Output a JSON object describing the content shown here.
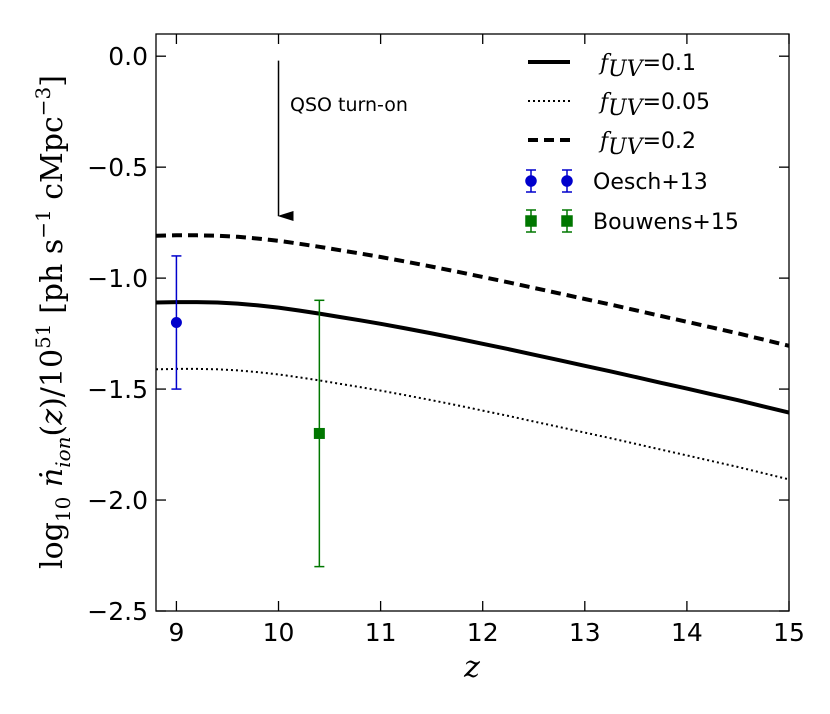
{
  "chart_data": {
    "type": "line",
    "x_range": [
      8.8,
      15
    ],
    "y_range": [
      -2.5,
      0.1
    ],
    "xlabel": "z",
    "ylabel": "log10 ṅ_ion(z)/10^51 [ph s^-1 cMpc^-3]",
    "x_ticks": [
      9,
      10,
      11,
      12,
      13,
      14,
      15
    ],
    "y_ticks": [
      0.0,
      -0.5,
      -1.0,
      -1.5,
      -2.0,
      -2.5
    ],
    "x_tick_labels": [
      "9",
      "10",
      "11",
      "12",
      "13",
      "14",
      "15"
    ],
    "y_tick_labels": [
      "0.0",
      "−0.5",
      "−1.0",
      "−1.5",
      "−2.0",
      "−2.5"
    ],
    "series": [
      {
        "name": "f_UV=0.1",
        "legend_label": "f_UV = 0.1",
        "legend_main": "f",
        "legend_sub": "UV",
        "legend_value": "=0.1",
        "style": "solid",
        "color": "#000000",
        "x": [
          8.8,
          9.0,
          9.2,
          9.4,
          9.6,
          9.8,
          10.0,
          10.2,
          10.4,
          10.6,
          10.8,
          11.0,
          11.25,
          11.5,
          11.75,
          12.0,
          12.25,
          12.5,
          12.75,
          13.0,
          13.25,
          13.5,
          13.75,
          14.0,
          14.25,
          14.5,
          14.75,
          15.0
        ],
        "y": [
          -1.11,
          -1.108,
          -1.108,
          -1.11,
          -1.115,
          -1.123,
          -1.133,
          -1.146,
          -1.16,
          -1.175,
          -1.19,
          -1.206,
          -1.227,
          -1.249,
          -1.272,
          -1.296,
          -1.32,
          -1.345,
          -1.37,
          -1.395,
          -1.42,
          -1.446,
          -1.472,
          -1.498,
          -1.524,
          -1.55,
          -1.578,
          -1.606
        ]
      },
      {
        "name": "f_UV=0.05",
        "legend_label": "f_UV = 0.05",
        "legend_main": "f",
        "legend_sub": "UV",
        "legend_value": "=0.05",
        "style": "dotted",
        "color": "#000000",
        "x": [
          8.8,
          9.0,
          9.2,
          9.4,
          9.6,
          9.8,
          10.0,
          10.2,
          10.4,
          10.6,
          10.8,
          11.0,
          11.25,
          11.5,
          11.75,
          12.0,
          12.25,
          12.5,
          12.75,
          13.0,
          13.25,
          13.5,
          13.75,
          14.0,
          14.25,
          14.5,
          14.75,
          15.0
        ],
        "y": [
          -1.411,
          -1.409,
          -1.409,
          -1.411,
          -1.416,
          -1.424,
          -1.434,
          -1.447,
          -1.461,
          -1.476,
          -1.491,
          -1.507,
          -1.528,
          -1.55,
          -1.573,
          -1.597,
          -1.621,
          -1.646,
          -1.671,
          -1.696,
          -1.721,
          -1.747,
          -1.773,
          -1.799,
          -1.825,
          -1.851,
          -1.879,
          -1.907
        ]
      },
      {
        "name": "f_UV=0.2",
        "legend_label": "f_UV = 0.2",
        "legend_main": "f",
        "legend_sub": "UV",
        "legend_value": "=0.2",
        "style": "dashed",
        "color": "#000000",
        "x": [
          8.8,
          9.0,
          9.2,
          9.4,
          9.6,
          9.8,
          10.0,
          10.2,
          10.4,
          10.6,
          10.8,
          11.0,
          11.25,
          11.5,
          11.75,
          12.0,
          12.25,
          12.5,
          12.75,
          13.0,
          13.25,
          13.5,
          13.75,
          14.0,
          14.25,
          14.5,
          14.75,
          15.0
        ],
        "y": [
          -0.809,
          -0.807,
          -0.807,
          -0.809,
          -0.814,
          -0.822,
          -0.832,
          -0.845,
          -0.859,
          -0.874,
          -0.889,
          -0.905,
          -0.926,
          -0.948,
          -0.971,
          -0.995,
          -1.019,
          -1.044,
          -1.069,
          -1.094,
          -1.119,
          -1.145,
          -1.171,
          -1.197,
          -1.223,
          -1.249,
          -1.277,
          -1.305
        ]
      }
    ],
    "errorbars": [
      {
        "name": "Oesch+13",
        "marker": "circle",
        "color": "#0000cc",
        "points": [
          {
            "x": 9.0,
            "y": -1.2,
            "yerr_low": 0.3,
            "yerr_high": 0.3
          }
        ]
      },
      {
        "name": "Bouwens+15",
        "marker": "square",
        "color": "#007700",
        "points": [
          {
            "x": 10.4,
            "y": -1.7,
            "yerr_low": 0.6,
            "yerr_high": 0.6
          }
        ]
      }
    ],
    "annotations": [
      {
        "text": "QSO turn-on",
        "arrow_x": 10.0,
        "arrow_y_start": -0.02,
        "arrow_y_end": -0.72
      }
    ],
    "legend_position": "top-right"
  }
}
